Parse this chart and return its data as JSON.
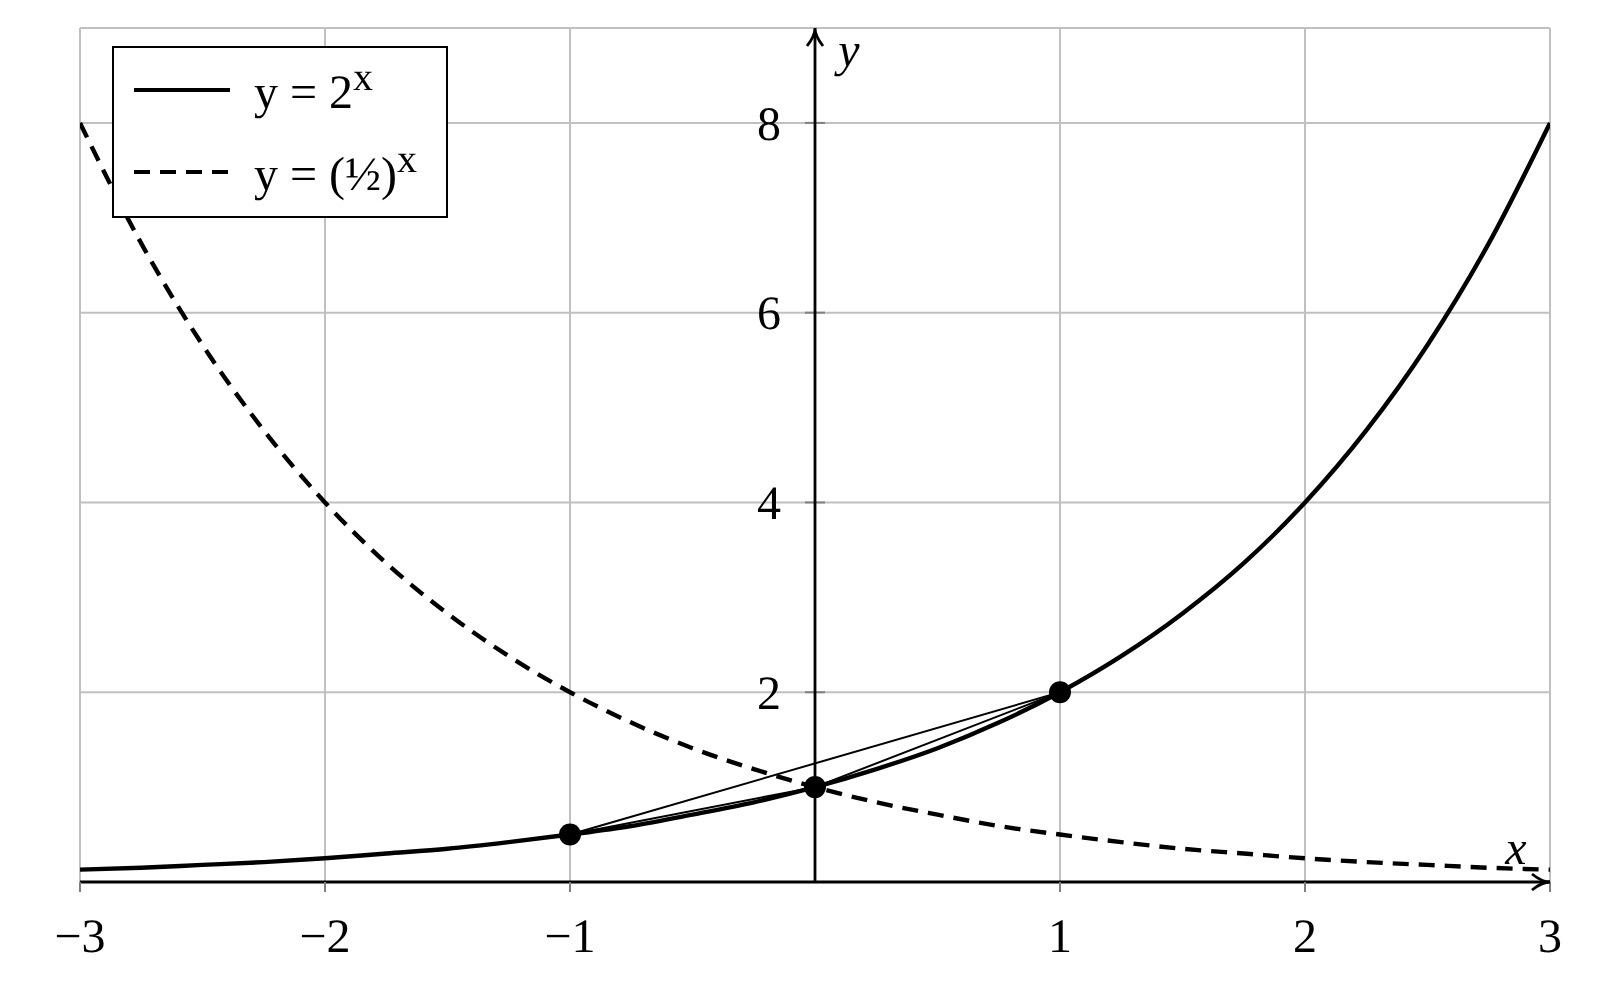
{
  "chart_data": {
    "type": "line",
    "xlabel": "x",
    "ylabel": "y",
    "x": [
      -3,
      -2.75,
      -2.5,
      -2.25,
      -2,
      -1.75,
      -1.5,
      -1.25,
      -1,
      -0.75,
      -0.5,
      -0.25,
      0,
      0.25,
      0.5,
      0.75,
      1,
      1.25,
      1.5,
      1.75,
      2,
      2.25,
      2.5,
      2.75,
      3
    ],
    "series": [
      {
        "name": "y = 2$^{x}$",
        "color": "#000000",
        "line_style": "solid",
        "values": [
          0.13,
          0.15,
          0.18,
          0.21,
          0.25,
          0.3,
          0.35,
          0.42,
          0.5,
          0.59,
          0.71,
          0.84,
          1,
          1.19,
          1.41,
          1.68,
          2,
          2.38,
          2.83,
          3.36,
          4,
          4.76,
          5.66,
          6.73,
          8
        ]
      },
      {
        "name": "y = (½)$^{x}$",
        "color": "#000000",
        "line_style": "dashed",
        "values": [
          8,
          6.73,
          5.66,
          4.76,
          4,
          3.36,
          2.83,
          2.38,
          2,
          1.68,
          1.41,
          1.19,
          1,
          0.84,
          0.71,
          0.59,
          0.5,
          0.42,
          0.35,
          0.3,
          0.25,
          0.21,
          0.18,
          0.15,
          0.13
        ]
      },
      {
        "type": "line",
        "color": "#000000",
        "x": [
          -1,
          1
        ],
        "values": [
          0.5,
          2
        ]
      },
      {
        "type": "line",
        "color": "#000000",
        "x": [
          0,
          1
        ],
        "values": [
          1,
          2
        ]
      },
      {
        "type": "line",
        "color": "#000000",
        "x": [
          -1,
          0
        ],
        "values": [
          0.5,
          1
        ]
      },
      {
        "type": "scatter",
        "color": "#000000",
        "marker": "circle",
        "x": [
          -1,
          0,
          1
        ],
        "values": [
          0.5,
          1,
          2
        ]
      }
    ],
    "xlim": [
      -3,
      3
    ],
    "ylim": [
      0,
      9
    ],
    "xticks": [
      -3,
      -2,
      -1,
      1,
      2,
      3
    ],
    "yticks": [
      2,
      4,
      6,
      8
    ],
    "grid": true,
    "legend": "top left",
    "marker": "none"
  }
}
